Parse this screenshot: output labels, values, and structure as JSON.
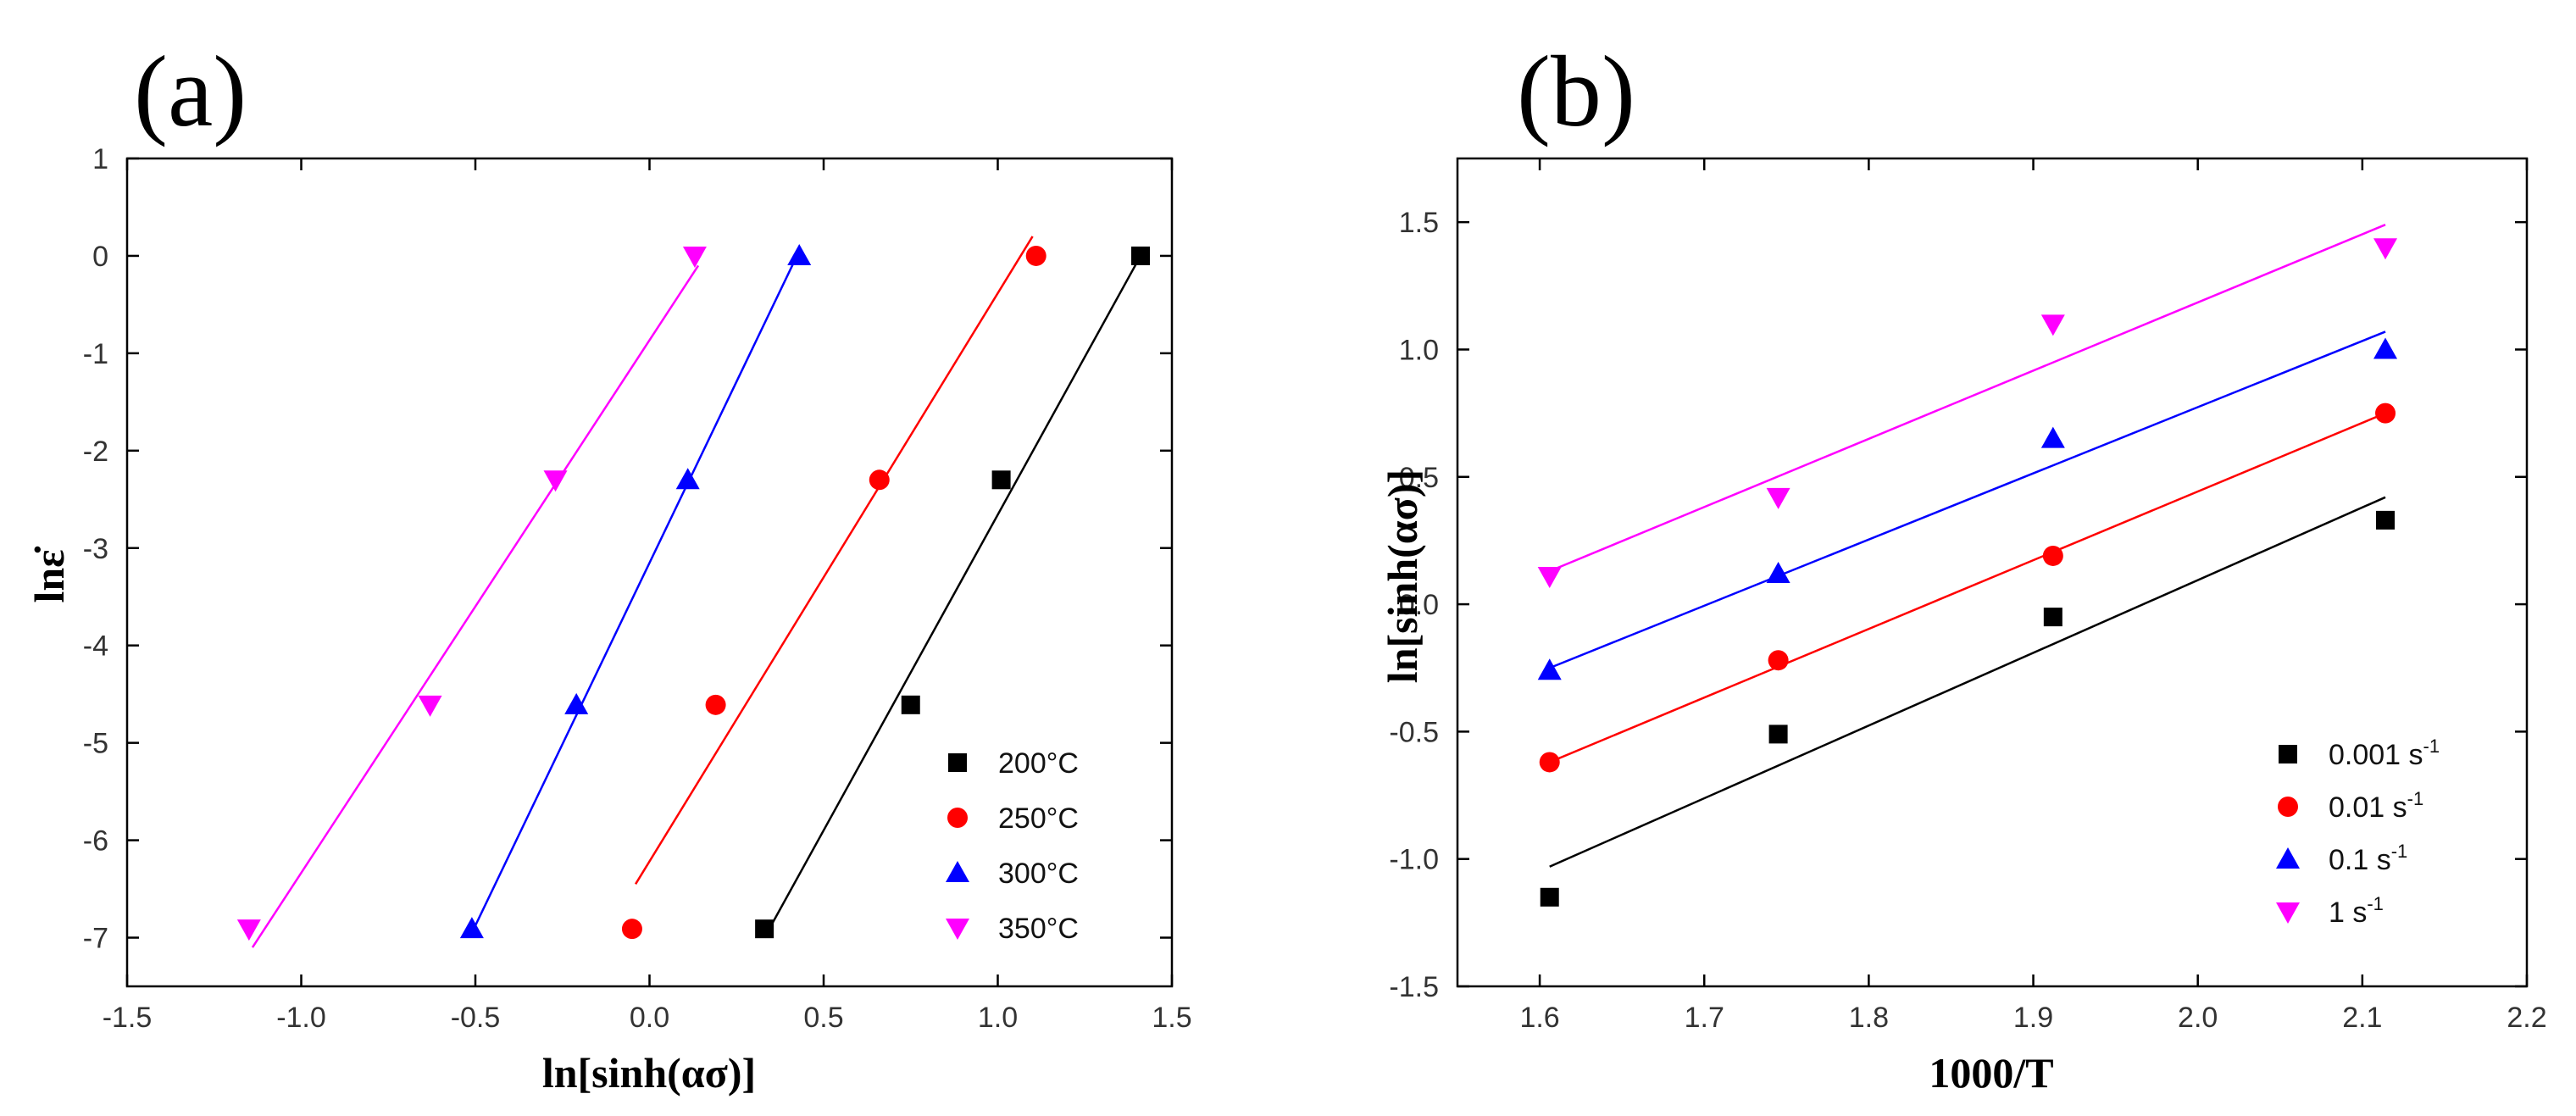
{
  "chart_data": [
    {
      "type": "scatter",
      "panel_label": "(a)",
      "title": "",
      "xlabel": "ln[sinh(ασ)]",
      "ylabel": "lnε̇",
      "xlim": [
        -1.5,
        1.5
      ],
      "ylim": [
        -7.5,
        1
      ],
      "xticks": [
        -1.5,
        -1.0,
        -0.5,
        0.0,
        0.5,
        1.0,
        1.5
      ],
      "yticks": [
        1,
        0,
        -1,
        -2,
        -3,
        -4,
        -5,
        -6,
        -7
      ],
      "xtick_labels": [
        "-1.5",
        "-1.0",
        "-0.5",
        "0.0",
        "0.5",
        "1.0",
        "1.5"
      ],
      "ytick_labels": [
        "1",
        "0",
        "-1",
        "-2",
        "-3",
        "-4",
        "-5",
        "-6",
        "-7"
      ],
      "legend_position": "bottom-right",
      "grid": false,
      "series": [
        {
          "name": "200°C",
          "color": "#000000",
          "marker": "square",
          "x": [
            0.33,
            0.75,
            1.01,
            1.41
          ],
          "y": [
            -6.91,
            -4.61,
            -2.3,
            0.0
          ],
          "fit": {
            "x": [
              0.33,
              1.41
            ],
            "y": [
              -7.0,
              0.0
            ]
          }
        },
        {
          "name": "250°C",
          "color": "#ff0000",
          "marker": "circle",
          "x": [
            -0.05,
            0.19,
            0.66,
            1.11
          ],
          "y": [
            -6.91,
            -4.61,
            -2.3,
            0.0
          ],
          "fit": {
            "x": [
              -0.04,
              1.1
            ],
            "y": [
              -6.45,
              0.2
            ]
          }
        },
        {
          "name": "300°C",
          "color": "#0000ff",
          "marker": "triangle-up",
          "x": [
            -0.51,
            -0.21,
            0.11,
            0.43
          ],
          "y": [
            -6.91,
            -4.61,
            -2.3,
            0.0
          ],
          "fit": {
            "x": [
              -0.51,
              0.43
            ],
            "y": [
              -6.95,
              0.05
            ]
          }
        },
        {
          "name": "350°C",
          "color": "#ff00ff",
          "marker": "triangle-down",
          "x": [
            -1.15,
            -0.63,
            -0.27,
            0.13
          ],
          "y": [
            -6.91,
            -4.61,
            -2.3,
            0.0
          ],
          "fit": {
            "x": [
              -1.14,
              0.14
            ],
            "y": [
              -7.1,
              -0.1
            ]
          }
        }
      ]
    },
    {
      "type": "scatter",
      "panel_label": "(b)",
      "title": "",
      "xlabel": "1000/T",
      "ylabel": "ln[sinh(ασ)]",
      "xlim": [
        1.55,
        2.2
      ],
      "ylim": [
        -1.5,
        1.75
      ],
      "xticks": [
        1.6,
        1.7,
        1.8,
        1.9,
        2.0,
        2.1,
        2.2
      ],
      "yticks": [
        1.5,
        1.0,
        0.5,
        0.0,
        -0.5,
        -1.0,
        -1.5
      ],
      "xtick_labels": [
        "1.6",
        "1.7",
        "1.8",
        "1.9",
        "2.0",
        "2.1",
        "2.2"
      ],
      "ytick_labels": [
        "1.5",
        "1.0",
        "0.5",
        "0.0",
        "-0.5",
        "-1.0",
        "-1.5"
      ],
      "legend_position": "bottom-right",
      "grid": false,
      "series": [
        {
          "name": "0.001 s",
          "unit_sup": "-1",
          "color": "#000000",
          "marker": "square",
          "x": [
            1.606,
            1.745,
            1.912,
            2.114
          ],
          "y": [
            -1.15,
            -0.51,
            -0.05,
            0.33
          ],
          "fit": {
            "x": [
              1.606,
              2.114
            ],
            "y": [
              -1.03,
              0.42
            ]
          }
        },
        {
          "name": "0.01 s",
          "unit_sup": "-1",
          "color": "#ff0000",
          "marker": "circle",
          "x": [
            1.606,
            1.745,
            1.912,
            2.114
          ],
          "y": [
            -0.62,
            -0.22,
            0.19,
            0.75
          ],
          "fit": {
            "x": [
              1.606,
              2.114
            ],
            "y": [
              -0.62,
              0.75
            ]
          }
        },
        {
          "name": "0.1 s",
          "unit_sup": "-1",
          "color": "#0000ff",
          "marker": "triangle-up",
          "x": [
            1.606,
            1.745,
            1.912,
            2.114
          ],
          "y": [
            -0.26,
            0.12,
            0.65,
            1.0
          ],
          "fit": {
            "x": [
              1.606,
              2.114
            ],
            "y": [
              -0.25,
              1.07
            ]
          }
        },
        {
          "name": "1 s",
          "unit_sup": "-1",
          "color": "#ff00ff",
          "marker": "triangle-down",
          "x": [
            1.606,
            1.745,
            1.912,
            2.114
          ],
          "y": [
            0.11,
            0.42,
            1.1,
            1.4
          ],
          "fit": {
            "x": [
              1.606,
              2.114
            ],
            "y": [
              0.13,
              1.49
            ]
          }
        }
      ]
    }
  ]
}
